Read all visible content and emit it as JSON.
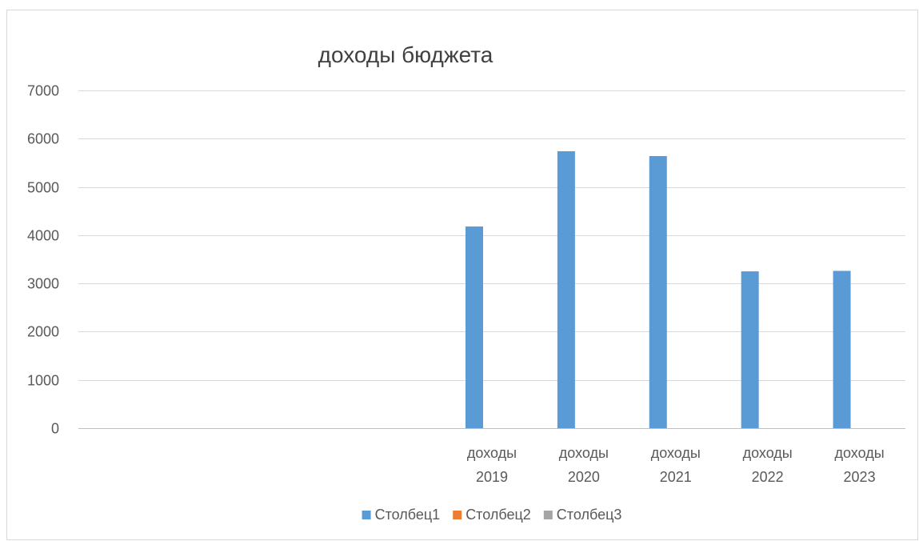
{
  "chart_data": {
    "type": "bar",
    "title": "доходы бюджета",
    "categories": [
      [
        "",
        ""
      ],
      [
        "",
        ""
      ],
      [
        "",
        ""
      ],
      [
        "",
        ""
      ],
      [
        "доходы",
        "2019"
      ],
      [
        "доходы",
        "2020"
      ],
      [
        "доходы",
        "2021"
      ],
      [
        "доходы",
        "2022"
      ],
      [
        "доходы",
        "2023"
      ]
    ],
    "series": [
      {
        "name": "Столбец1",
        "color": "#5b9bd5",
        "values": [
          null,
          null,
          null,
          null,
          4180,
          5740,
          5640,
          3250,
          3260
        ]
      },
      {
        "name": "Столбец2",
        "color": "#ed7d31",
        "values": [
          null,
          null,
          null,
          null,
          null,
          null,
          null,
          null,
          null
        ]
      },
      {
        "name": "Столбец3",
        "color": "#a5a5a5",
        "values": [
          null,
          null,
          null,
          null,
          null,
          null,
          null,
          null,
          null
        ]
      }
    ],
    "ylim": [
      0,
      7000
    ],
    "yticks": [
      0,
      1000,
      2000,
      3000,
      4000,
      5000,
      6000,
      7000
    ],
    "grid": true,
    "legend_position": "bottom",
    "xlabel": "",
    "ylabel": ""
  }
}
